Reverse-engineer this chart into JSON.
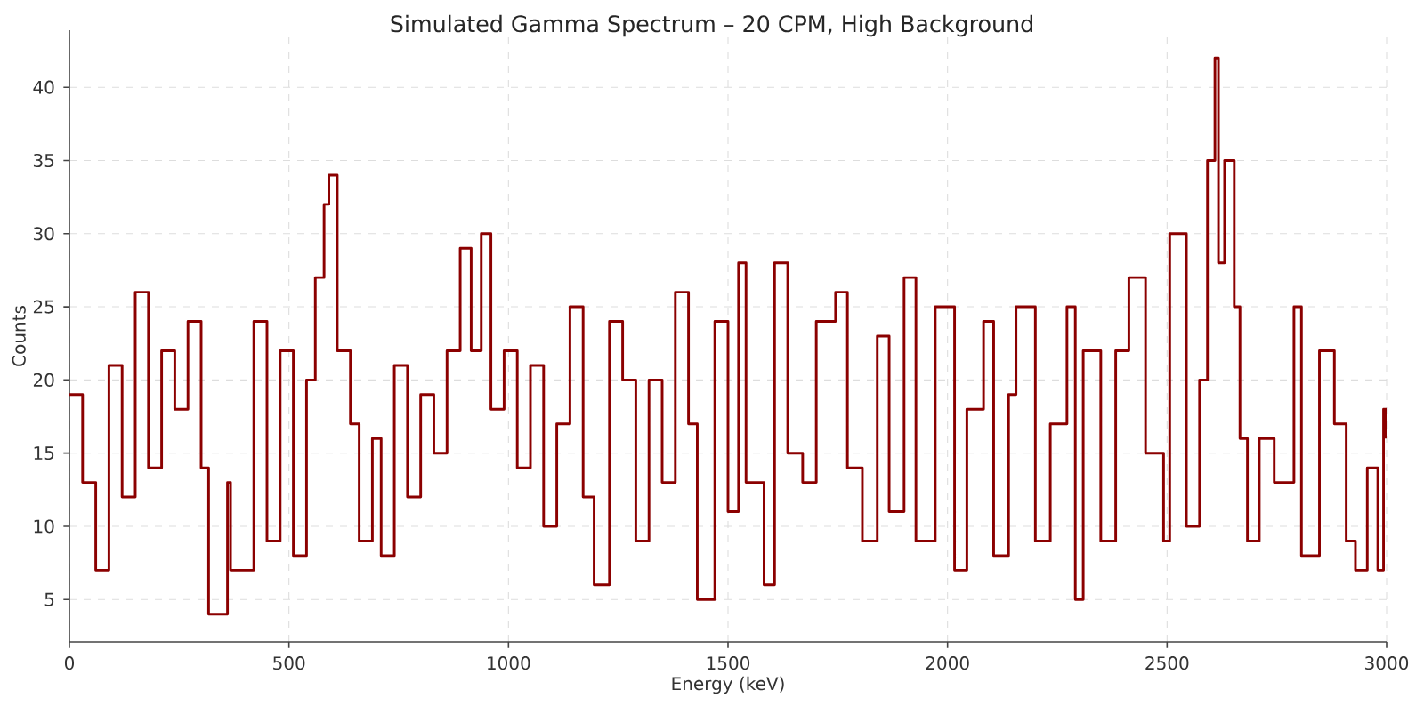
{
  "chart_data": {
    "type": "step",
    "title": "Simulated Gamma Spectrum – 20 CPM, High Background",
    "xlabel": "Energy (keV)",
    "ylabel": "Counts",
    "x": [
      0,
      30,
      60,
      90,
      120,
      150,
      180,
      210,
      240,
      270,
      300,
      317,
      360,
      367,
      420,
      450,
      480,
      510,
      540,
      560,
      580,
      591,
      610,
      640,
      660,
      690,
      710,
      740,
      770,
      800,
      830,
      860,
      890,
      915,
      938,
      960,
      990,
      1020,
      1050,
      1080,
      1110,
      1140,
      1170,
      1195,
      1230,
      1260,
      1290,
      1320,
      1350,
      1380,
      1410,
      1430,
      1470,
      1500,
      1524,
      1541,
      1582,
      1606,
      1636,
      1670,
      1701,
      1745,
      1772,
      1806,
      1840,
      1867,
      1901,
      1928,
      1972,
      2016,
      2044,
      2082,
      2105,
      2139,
      2156,
      2200,
      2234,
      2272,
      2291,
      2309,
      2349,
      2383,
      2413,
      2451,
      2492,
      2506,
      2544,
      2574,
      2592,
      2609,
      2617,
      2631,
      2653,
      2666,
      2683,
      2710,
      2744,
      2789,
      2806,
      2847,
      2881,
      2908,
      2929,
      2956,
      2980,
      2993,
      2999
    ],
    "values": [
      19,
      13,
      7,
      21,
      12,
      26,
      14,
      22,
      18,
      24,
      14,
      4,
      13,
      7,
      24,
      9,
      22,
      8,
      20,
      27,
      32,
      34,
      22,
      17,
      9,
      16,
      8,
      21,
      12,
      19,
      15,
      22,
      29,
      22,
      30,
      18,
      22,
      14,
      21,
      10,
      17,
      25,
      12,
      6,
      24,
      20,
      9,
      20,
      13,
      26,
      17,
      5,
      24,
      11,
      28,
      13,
      6,
      28,
      15,
      13,
      24,
      26,
      14,
      9,
      23,
      11,
      27,
      9,
      25,
      7,
      18,
      24,
      8,
      19,
      25,
      9,
      17,
      25,
      5,
      22,
      9,
      22,
      27,
      15,
      9,
      30,
      10,
      20,
      35,
      42,
      28,
      35,
      25,
      16,
      9,
      16,
      13,
      25,
      8,
      22,
      17,
      9,
      7,
      14,
      7,
      18,
      16
    ],
    "color": "#8b0000",
    "xlim": [
      0,
      3000
    ],
    "ylim": [
      2.1,
      43.9
    ],
    "xticks": [
      0,
      500,
      1000,
      1500,
      2000,
      2500,
      3000
    ],
    "yticks": [
      5,
      10,
      15,
      20,
      25,
      30,
      35,
      40
    ],
    "grid": true
  }
}
